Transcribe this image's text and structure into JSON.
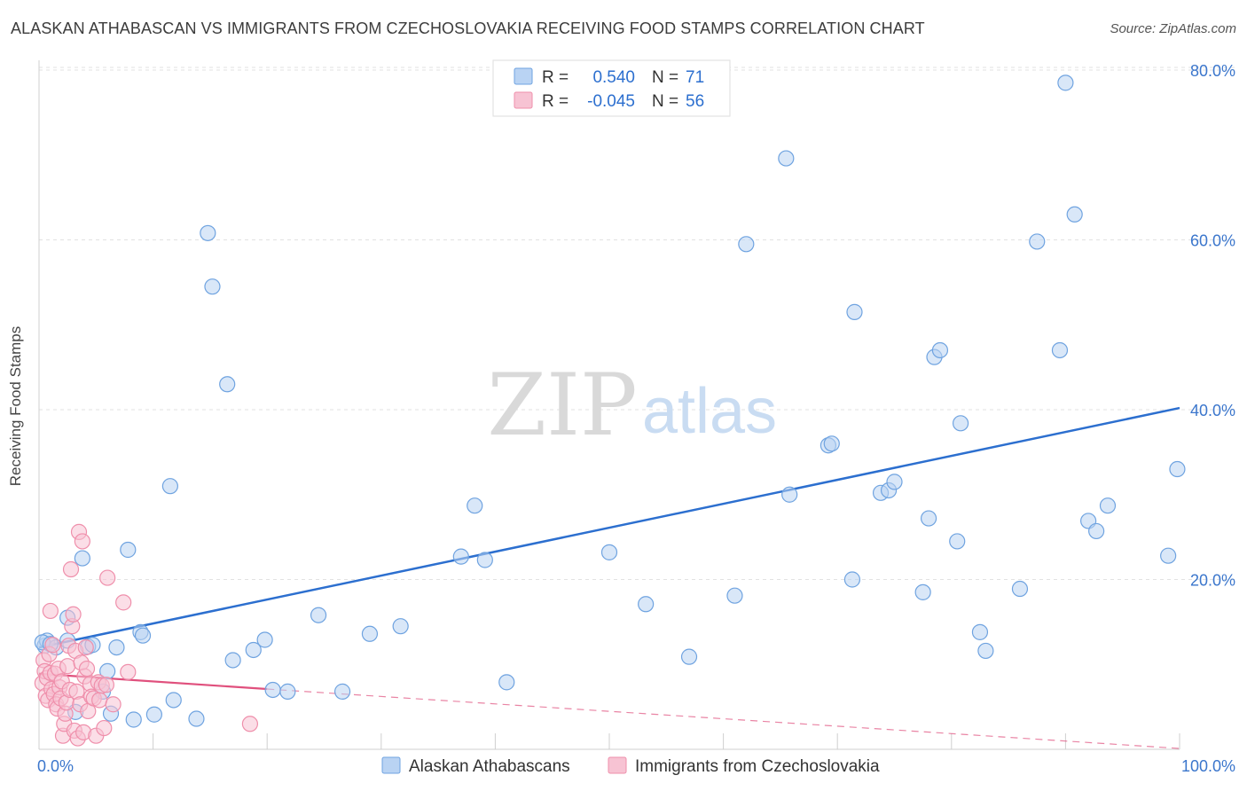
{
  "header": {
    "title": "ALASKAN ATHABASCAN VS IMMIGRANTS FROM CZECHOSLOVAKIA RECEIVING FOOD STAMPS CORRELATION CHART",
    "source": "Source: ZipAtlas.com"
  },
  "watermark": {
    "zip": "ZIP",
    "atlas": "atlas"
  },
  "chart_data": {
    "type": "scatter",
    "title": "ALASKAN ATHABASCAN VS IMMIGRANTS FROM CZECHOSLOVAKIA RECEIVING FOOD STAMPS CORRELATION CHART",
    "xlabel": "",
    "ylabel": "Receiving Food Stamps",
    "xlim": [
      0,
      100
    ],
    "ylim": [
      0,
      82
    ],
    "x_tick_labels": [
      "0.0%",
      "100.0%"
    ],
    "y_ticks": [
      20,
      40,
      60,
      80
    ],
    "y_tick_labels": [
      "20.0%",
      "40.0%",
      "60.0%",
      "80.0%"
    ],
    "grid": true,
    "legend_position": "top-center",
    "stats": [
      {
        "r_label": "R =",
        "r": "0.540",
        "n_label": "N =",
        "n": "71"
      },
      {
        "r_label": "R =",
        "r": "-0.045",
        "n_label": "N =",
        "n": "56"
      }
    ],
    "series": [
      {
        "name": "Alaskan Athabascans",
        "color": "#6fa3e0",
        "fill": "#b9d3f3",
        "line_color": "#2c6fcf",
        "trend": {
          "x": [
            0,
            100
          ],
          "y": [
            12.0,
            40.2
          ]
        },
        "points": [
          [
            0.5,
            12.2
          ],
          [
            0.7,
            12.8
          ],
          [
            1.5,
            12.0
          ],
          [
            2.5,
            15.5
          ],
          [
            2.5,
            12.8
          ],
          [
            3.2,
            4.4
          ],
          [
            3.8,
            22.5
          ],
          [
            4.3,
            12.1
          ],
          [
            4.7,
            12.3
          ],
          [
            5.6,
            6.8
          ],
          [
            6.0,
            9.2
          ],
          [
            6.3,
            4.2
          ],
          [
            6.8,
            12.0
          ],
          [
            7.8,
            23.5
          ],
          [
            8.3,
            3.5
          ],
          [
            8.9,
            13.8
          ],
          [
            9.1,
            13.4
          ],
          [
            10.1,
            4.1
          ],
          [
            11.5,
            31.0
          ],
          [
            11.8,
            5.8
          ],
          [
            13.8,
            3.6
          ],
          [
            14.8,
            60.8
          ],
          [
            15.2,
            54.5
          ],
          [
            16.5,
            43.0
          ],
          [
            17.0,
            10.5
          ],
          [
            18.8,
            11.7
          ],
          [
            19.8,
            12.9
          ],
          [
            20.5,
            7.0
          ],
          [
            21.8,
            6.8
          ],
          [
            24.5,
            15.8
          ],
          [
            26.6,
            6.8
          ],
          [
            29.0,
            13.6
          ],
          [
            31.7,
            14.5
          ],
          [
            37.0,
            22.7
          ],
          [
            38.2,
            28.7
          ],
          [
            39.1,
            22.3
          ],
          [
            41.0,
            7.9
          ],
          [
            50.0,
            23.2
          ],
          [
            53.2,
            17.1
          ],
          [
            57.0,
            10.9
          ],
          [
            61.0,
            18.1
          ],
          [
            62.0,
            59.5
          ],
          [
            65.5,
            69.6
          ],
          [
            65.8,
            30.0
          ],
          [
            69.2,
            35.8
          ],
          [
            69.5,
            36.0
          ],
          [
            71.3,
            20.0
          ],
          [
            71.5,
            51.5
          ],
          [
            73.8,
            30.2
          ],
          [
            74.5,
            30.5
          ],
          [
            75.0,
            31.5
          ],
          [
            77.5,
            18.5
          ],
          [
            78.0,
            27.2
          ],
          [
            78.5,
            46.2
          ],
          [
            79.0,
            47.0
          ],
          [
            80.5,
            24.5
          ],
          [
            80.8,
            38.4
          ],
          [
            82.5,
            13.8
          ],
          [
            83.0,
            11.6
          ],
          [
            86.0,
            18.9
          ],
          [
            87.5,
            59.8
          ],
          [
            89.5,
            47.0
          ],
          [
            90.0,
            78.5
          ],
          [
            90.8,
            63.0
          ],
          [
            92.0,
            26.9
          ],
          [
            92.7,
            25.7
          ],
          [
            93.7,
            28.7
          ],
          [
            99.0,
            22.8
          ],
          [
            99.8,
            33.0
          ],
          [
            0.3,
            12.6
          ],
          [
            1.0,
            12.4
          ]
        ]
      },
      {
        "name": "Immigrants from Czechoslovakia",
        "color": "#ef8fab",
        "fill": "#f7c3d3",
        "line_color": "#e0507d",
        "trend": {
          "x": [
            0,
            20
          ],
          "y": [
            8.9,
            7.1
          ]
        },
        "trend_extension": {
          "x": [
            20,
            100
          ],
          "y": [
            7.1,
            0.1
          ]
        },
        "points": [
          [
            0.3,
            7.8
          ],
          [
            0.4,
            10.5
          ],
          [
            0.5,
            9.2
          ],
          [
            0.6,
            6.3
          ],
          [
            0.7,
            8.4
          ],
          [
            0.8,
            5.8
          ],
          [
            0.9,
            11.2
          ],
          [
            1.0,
            16.3
          ],
          [
            1.0,
            9.0
          ],
          [
            1.1,
            7.1
          ],
          [
            1.2,
            12.3
          ],
          [
            1.3,
            6.5
          ],
          [
            1.4,
            8.9
          ],
          [
            1.5,
            5.3
          ],
          [
            1.6,
            4.8
          ],
          [
            1.7,
            9.5
          ],
          [
            1.8,
            7.3
          ],
          [
            1.9,
            6.0
          ],
          [
            2.0,
            8.0
          ],
          [
            2.1,
            1.6
          ],
          [
            2.2,
            3.0
          ],
          [
            2.3,
            4.2
          ],
          [
            2.4,
            5.5
          ],
          [
            2.5,
            9.8
          ],
          [
            2.6,
            12.2
          ],
          [
            2.7,
            7.0
          ],
          [
            2.8,
            21.2
          ],
          [
            2.9,
            14.5
          ],
          [
            3.0,
            15.9
          ],
          [
            3.1,
            2.2
          ],
          [
            3.2,
            11.6
          ],
          [
            3.3,
            6.8
          ],
          [
            3.4,
            1.3
          ],
          [
            3.5,
            25.6
          ],
          [
            3.6,
            5.3
          ],
          [
            3.7,
            10.2
          ],
          [
            3.8,
            24.5
          ],
          [
            3.9,
            2.0
          ],
          [
            4.0,
            8.6
          ],
          [
            4.1,
            12.0
          ],
          [
            4.2,
            9.5
          ],
          [
            4.3,
            4.5
          ],
          [
            4.5,
            7.7
          ],
          [
            4.6,
            6.2
          ],
          [
            4.8,
            6.0
          ],
          [
            5.0,
            1.6
          ],
          [
            5.2,
            7.9
          ],
          [
            5.3,
            5.8
          ],
          [
            5.5,
            7.5
          ],
          [
            5.7,
            2.5
          ],
          [
            5.9,
            7.6
          ],
          [
            6.0,
            20.2
          ],
          [
            6.5,
            5.3
          ],
          [
            7.4,
            17.3
          ],
          [
            7.8,
            9.1
          ],
          [
            18.5,
            3.0
          ]
        ]
      }
    ]
  }
}
